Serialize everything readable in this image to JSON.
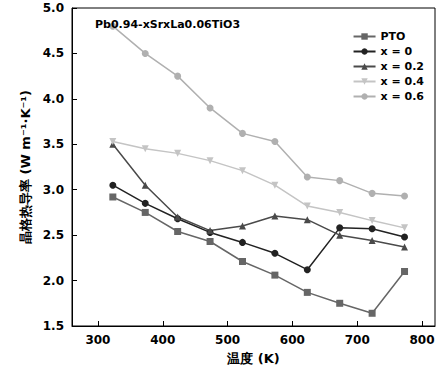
{
  "chart_data": {
    "type": "line",
    "title": "Pb0.94-xSrxLa0.06TiO3",
    "x_label": "温度 (K)",
    "y_label": "晶格热导率 (W m⁻¹·K⁻¹)",
    "x": [
      323,
      373,
      423,
      473,
      523,
      573,
      623,
      673,
      723,
      773
    ],
    "xlim": [
      260,
      820
    ],
    "xticks": [
      300,
      400,
      500,
      600,
      700,
      800
    ],
    "ylim": [
      1.5,
      5.0
    ],
    "yticks": [
      1.5,
      {
        "value": 2,
        "label": "2.0"
      },
      2.5,
      {
        "value": 3,
        "label": "3.0"
      },
      3.5,
      {
        "value": 4,
        "label": "4.0"
      },
      4.5,
      {
        "value": 5,
        "label": "5.0"
      }
    ],
    "legend": "upper right",
    "grid": false,
    "series": [
      {
        "name": "PTO",
        "color": "#666666",
        "marker": "square",
        "values": [
          2.92,
          2.75,
          2.54,
          2.43,
          2.21,
          2.06,
          1.87,
          1.75,
          1.64,
          2.1
        ]
      },
      {
        "name": "x = 0",
        "color": "#222222",
        "marker": "circle",
        "values": [
          3.05,
          2.85,
          2.68,
          2.53,
          2.42,
          2.3,
          2.12,
          2.58,
          2.57,
          2.48
        ]
      },
      {
        "name": "x = 0.2",
        "color": "#4a4a4a",
        "marker": "triangle",
        "values": [
          3.5,
          3.05,
          2.7,
          2.55,
          2.6,
          2.71,
          2.67,
          2.5,
          2.44,
          2.37
        ]
      },
      {
        "name": "x = 0.4",
        "color": "#c4c4c4",
        "marker": "triangle-down",
        "values": [
          3.53,
          3.45,
          3.4,
          3.32,
          3.21,
          3.05,
          2.82,
          2.75,
          2.66,
          2.58
        ]
      },
      {
        "name": "x = 0.6",
        "color": "#b0b0b0",
        "marker": "circle",
        "values": [
          4.8,
          4.5,
          4.25,
          3.9,
          3.62,
          3.53,
          3.14,
          3.1,
          2.96,
          2.93
        ]
      }
    ]
  }
}
